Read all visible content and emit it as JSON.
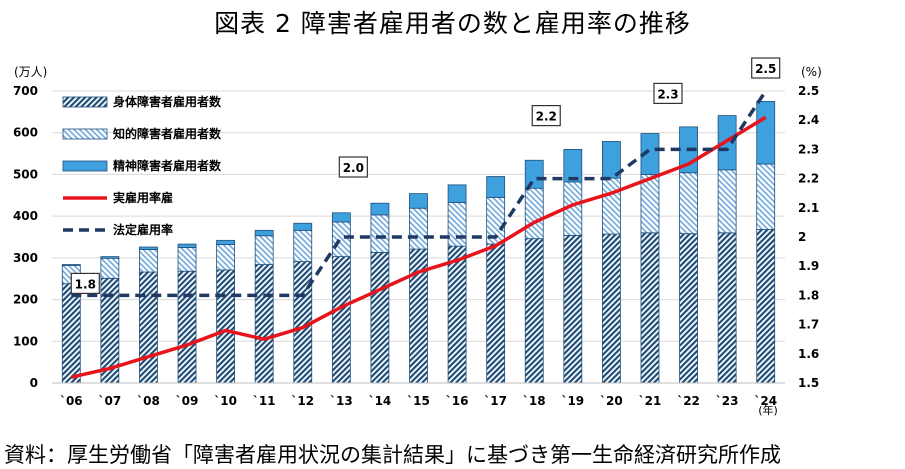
{
  "chart_data": {
    "type": "bar",
    "title": "図表 2  障害者雇用者の数と雇用率の推移",
    "ylabel_left": "(万人)",
    "ylabel_right": "(%)",
    "xlabel": "(年)",
    "ylim_left": [
      0,
      700
    ],
    "ylim_right": [
      1.5,
      2.5
    ],
    "left_ticks": [
      0,
      100,
      200,
      300,
      400,
      500,
      600,
      700
    ],
    "right_ticks": [
      "1.5",
      "1.6",
      "1.7",
      "1.8",
      "1.9",
      "2",
      "2.1",
      "2.2",
      "2.3",
      "2.4",
      "2.5"
    ],
    "categories": [
      "`06",
      "`07",
      "`08",
      "`09",
      "`10",
      "`11",
      "`12",
      "`13",
      "`14",
      "`15",
      "`16",
      "`17",
      "`18",
      "`19",
      "`20",
      "`21",
      "`22",
      "`23",
      "`24"
    ],
    "series": [
      {
        "name": "身体障害者雇用者数",
        "kind": "stacked-bar",
        "pattern": "dense-hatch",
        "values": [
          238,
          251,
          266,
          268,
          271,
          284,
          291,
          303,
          313,
          321,
          328,
          333,
          346,
          354,
          357,
          360,
          358,
          360,
          368
        ]
      },
      {
        "name": "知的障害者雇用者数",
        "kind": "stacked-bar",
        "pattern": "light-hatch",
        "values": [
          44,
          48,
          54,
          57,
          61,
          69,
          75,
          83,
          90,
          98,
          105,
          112,
          121,
          128,
          134,
          140,
          146,
          151,
          157
        ]
      },
      {
        "name": "精神障害者雇用者数",
        "kind": "stacked-bar",
        "pattern": "solid",
        "values": [
          2,
          4,
          6,
          8,
          10,
          13,
          17,
          22,
          28,
          35,
          42,
          50,
          67,
          78,
          88,
          98,
          110,
          130,
          150
        ]
      },
      {
        "name": "実雇用率雇",
        "kind": "line",
        "axis": "right",
        "style": "solid",
        "values": [
          1.52,
          1.55,
          1.59,
          1.63,
          1.68,
          1.65,
          1.69,
          1.76,
          1.82,
          1.88,
          1.92,
          1.97,
          2.05,
          2.11,
          2.15,
          2.2,
          2.25,
          2.33,
          2.41
        ]
      },
      {
        "name": "法定雇用率",
        "kind": "line",
        "axis": "right",
        "style": "dashed",
        "values": [
          1.8,
          1.8,
          1.8,
          1.8,
          1.8,
          1.8,
          1.8,
          2.0,
          2.0,
          2.0,
          2.0,
          2.0,
          2.2,
          2.2,
          2.2,
          2.3,
          2.3,
          2.3,
          2.5
        ]
      }
    ],
    "annotations": [
      {
        "text": "1.8",
        "index": 0,
        "value": 1.8
      },
      {
        "text": "2.0",
        "index": 7,
        "value": 2.0
      },
      {
        "text": "2.2",
        "index": 12,
        "value": 2.2
      },
      {
        "text": "2.3",
        "index": 15,
        "value": 2.3
      },
      {
        "text": "2.5",
        "index": 18,
        "value": 2.5
      }
    ],
    "legend_position": "top-left",
    "grid": true
  },
  "colors": {
    "hatch_dark": "#1f4e79",
    "hatch_light": "#6fa8dc",
    "solid_bar": "#3fa0de",
    "actual_line": "#e8141b",
    "legal_line": "#1f3864",
    "grid": "#d9d9d9"
  },
  "source_note": "資料：厚生労働省「障害者雇用状況の集計結果」に基づき第一生命経済研究所作成"
}
